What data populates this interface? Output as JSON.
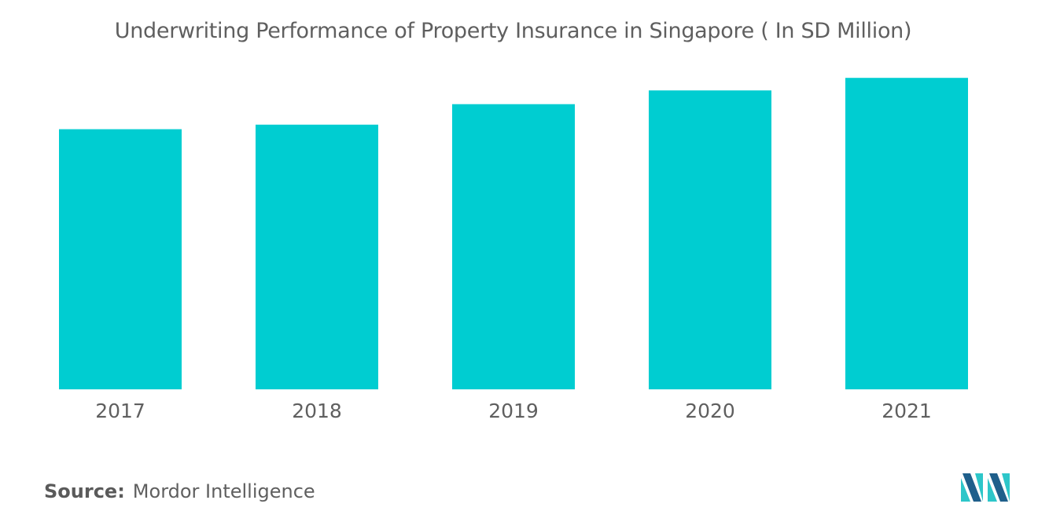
{
  "chart_data": {
    "type": "bar",
    "title": "Underwriting Performance of Property Insurance in Singapore ( In SD Million)",
    "xlabel": "",
    "ylabel": "",
    "categories": [
      "2017",
      "2018",
      "2019",
      "2020",
      "2021"
    ],
    "values": [
      228,
      232,
      250,
      262,
      273
    ],
    "ylim": [
      0,
      300
    ],
    "grid": false,
    "legend": "none",
    "bar_color": "#00cdd1"
  },
  "source": {
    "label": "Source:",
    "text": "Mordor Intelligence"
  },
  "logo_icon": "mordor-intelligence-logo-icon",
  "colors": {
    "bar": "#00cdd1",
    "logo_dark": "#1f5f8b",
    "logo_light": "#2dc6c9"
  }
}
